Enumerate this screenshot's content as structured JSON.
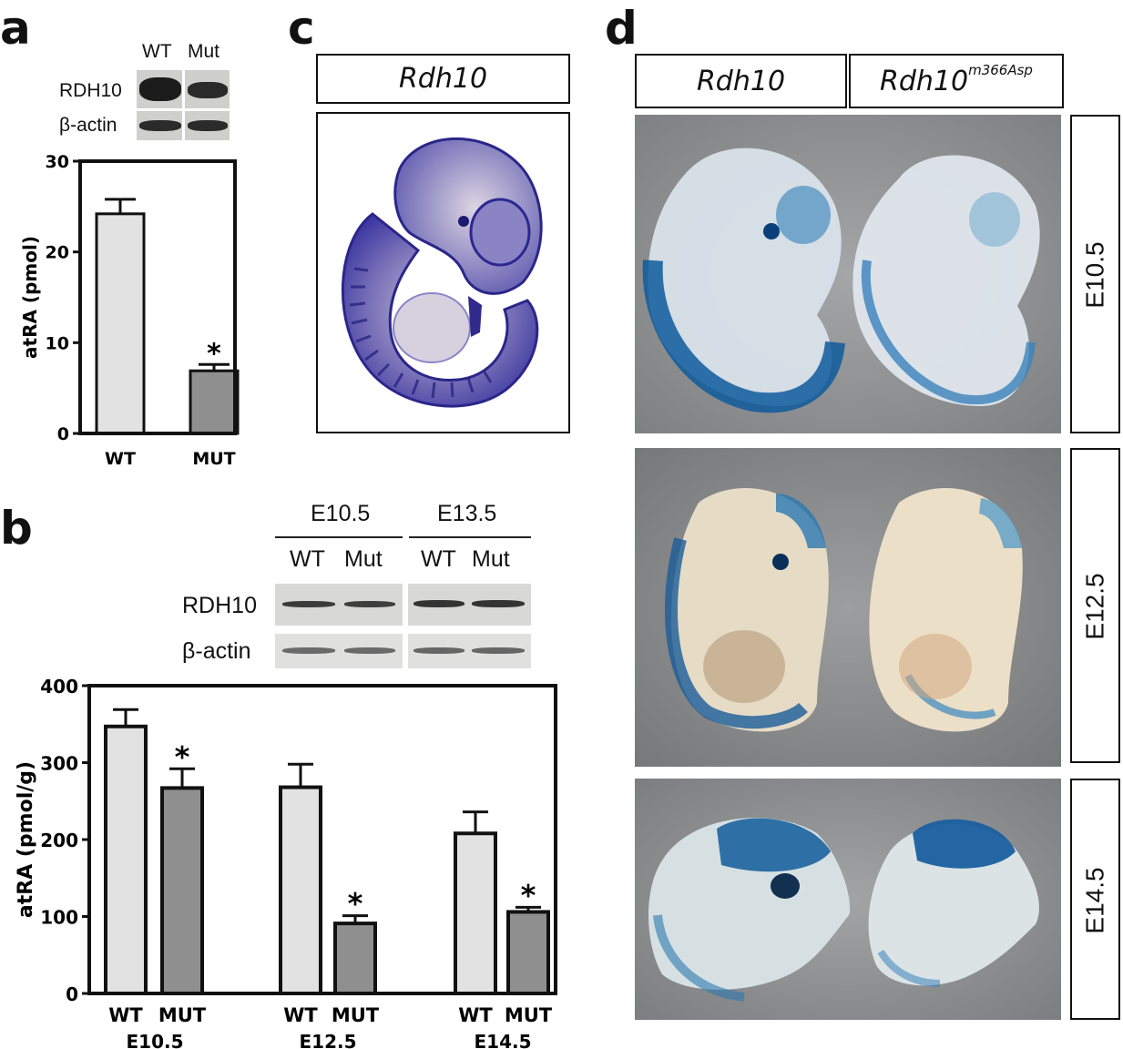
{
  "panels": {
    "a": {
      "letter": "a",
      "blot": {
        "col_labels": [
          "WT",
          "Mut"
        ],
        "row_labels": [
          "RDH10",
          "β-actin"
        ]
      },
      "chart_data": {
        "type": "bar",
        "categories": [
          "WT",
          "MUT"
        ],
        "values": [
          24.2,
          6.9
        ],
        "errors": [
          1.6,
          0.7
        ],
        "significance": [
          "",
          "*"
        ],
        "ylabel": "atRA (pmol)",
        "ylim": [
          0,
          30
        ],
        "yticks": [
          "0",
          "10",
          "20",
          "30"
        ],
        "colors": [
          "#e2e2e2",
          "#8f8f8f"
        ]
      }
    },
    "b": {
      "letter": "b",
      "blot": {
        "stages": [
          "E10.5",
          "E13.5"
        ],
        "col_labels": [
          "WT",
          "Mut",
          "WT",
          "Mut"
        ],
        "row_labels": [
          "RDH10",
          "β-actin"
        ]
      },
      "chart_data": {
        "type": "bar",
        "groups": [
          "E10.5",
          "E12.5",
          "E14.5"
        ],
        "categories": [
          "WT",
          "MUT",
          "WT",
          "MUT",
          "WT",
          "MUT"
        ],
        "values": [
          347,
          267,
          268,
          91,
          208,
          106
        ],
        "errors": [
          22,
          25,
          30,
          10,
          28,
          6
        ],
        "significance": [
          "",
          "*",
          "",
          "*",
          "",
          "*"
        ],
        "ylabel": "atRA (pmol/g)",
        "ylim": [
          0,
          400
        ],
        "yticks": [
          "0",
          "100",
          "200",
          "300",
          "400"
        ],
        "colors": [
          "#e2e2e2",
          "#8f8f8f"
        ]
      }
    },
    "c": {
      "letter": "c",
      "header": "Rdh10"
    },
    "d": {
      "letter": "d",
      "headers": {
        "left": "Rdh10",
        "right_base": "Rdh10",
        "right_sup": "m366Asp"
      },
      "stages": [
        "E10.5",
        "E12.5",
        "E14.5"
      ]
    }
  }
}
